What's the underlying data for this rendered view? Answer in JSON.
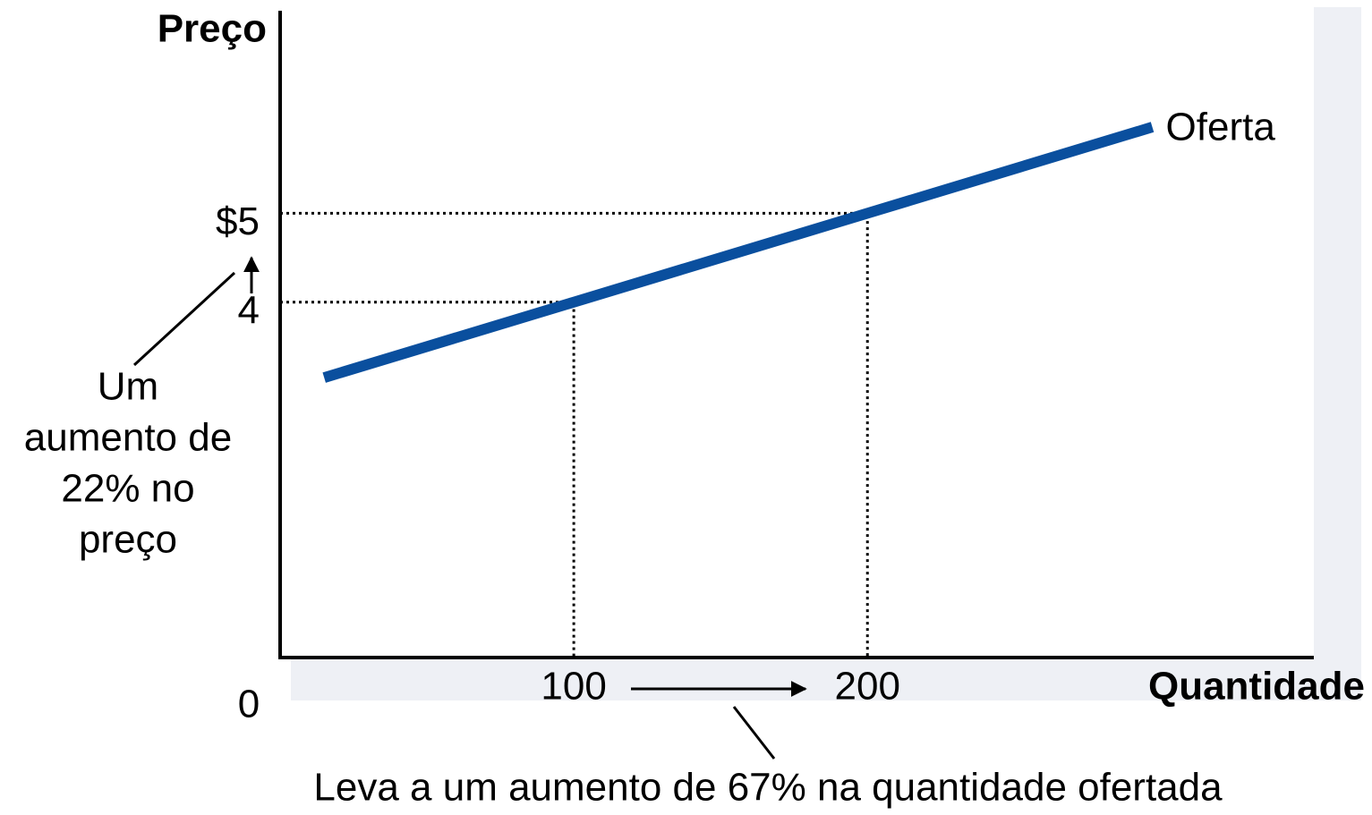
{
  "chart_data": {
    "type": "line",
    "ylabel": "Preço",
    "xlabel": "Quantidade",
    "x": [
      15,
      100,
      200,
      297
    ],
    "series": [
      {
        "name": "Oferta",
        "color": "#0a4f9e",
        "values": [
          3.15,
          4,
          5,
          5.97
        ]
      }
    ],
    "xlim": [
      0,
      352
    ],
    "ylim": [
      0,
      7.4
    ],
    "xticks": [
      0,
      100,
      200
    ],
    "yticks": [
      4,
      {
        "value": 5,
        "label": "$5"
      }
    ],
    "annotations": {
      "price": [
        "Um",
        "aumento de",
        "22% no",
        "preço"
      ],
      "quantity": "Leva a um aumento de 67% na quantidade ofertada"
    }
  }
}
